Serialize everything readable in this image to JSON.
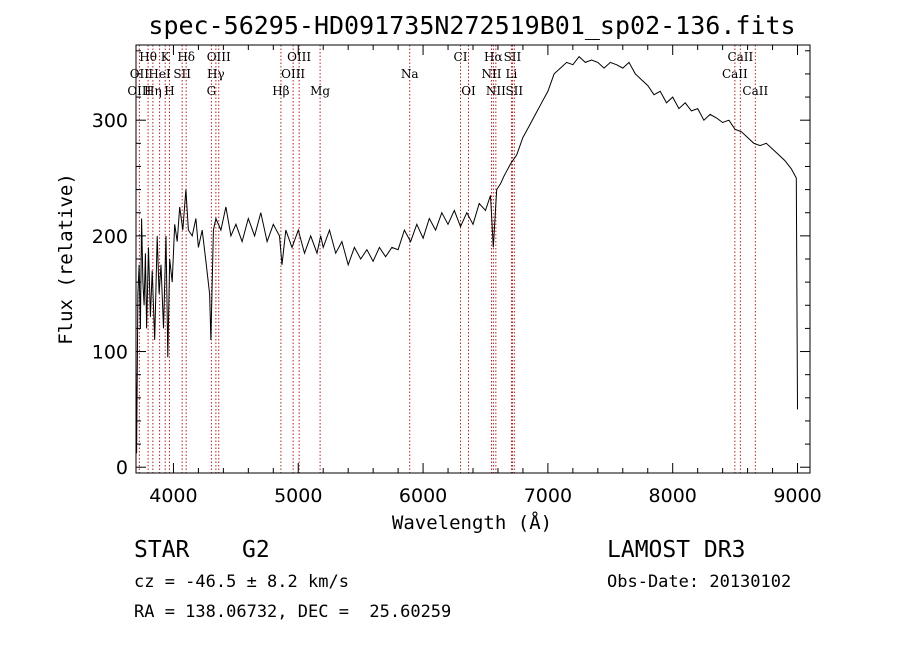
{
  "chart_data": {
    "type": "line",
    "title": "spec-56295-HD091735N272519B01_sp02-136.fits",
    "xlabel": "Wavelength (Å)",
    "ylabel": "Flux (relative)",
    "xlim": [
      3700,
      9100
    ],
    "ylim": [
      -5,
      365
    ],
    "xticks": [
      4000,
      5000,
      6000,
      7000,
      8000,
      9000
    ],
    "yticks": [
      0,
      100,
      200,
      300
    ],
    "series": [
      {
        "name": "Flux",
        "points": [
          [
            3700,
            80
          ],
          [
            3705,
            12
          ],
          [
            3715,
            150
          ],
          [
            3725,
            175
          ],
          [
            3735,
            120
          ],
          [
            3745,
            215
          ],
          [
            3755,
            160
          ],
          [
            3765,
            140
          ],
          [
            3775,
            185
          ],
          [
            3785,
            120
          ],
          [
            3800,
            190
          ],
          [
            3815,
            130
          ],
          [
            3830,
            170
          ],
          [
            3850,
            110
          ],
          [
            3870,
            200
          ],
          [
            3885,
            150
          ],
          [
            3900,
            175
          ],
          [
            3920,
            120
          ],
          [
            3940,
            200
          ],
          [
            3955,
            95
          ],
          [
            3970,
            180
          ],
          [
            3990,
            160
          ],
          [
            4010,
            210
          ],
          [
            4030,
            195
          ],
          [
            4050,
            225
          ],
          [
            4075,
            205
          ],
          [
            4100,
            240
          ],
          [
            4120,
            205
          ],
          [
            4150,
            200
          ],
          [
            4180,
            215
          ],
          [
            4200,
            190
          ],
          [
            4230,
            205
          ],
          [
            4260,
            178
          ],
          [
            4290,
            150
          ],
          [
            4300,
            110
          ],
          [
            4320,
            205
          ],
          [
            4340,
            215
          ],
          [
            4380,
            205
          ],
          [
            4420,
            225
          ],
          [
            4460,
            200
          ],
          [
            4500,
            210
          ],
          [
            4550,
            195
          ],
          [
            4600,
            215
          ],
          [
            4650,
            200
          ],
          [
            4700,
            220
          ],
          [
            4750,
            195
          ],
          [
            4800,
            210
          ],
          [
            4850,
            200
          ],
          [
            4870,
            175
          ],
          [
            4900,
            205
          ],
          [
            4950,
            190
          ],
          [
            5000,
            205
          ],
          [
            5050,
            185
          ],
          [
            5100,
            200
          ],
          [
            5150,
            185
          ],
          [
            5180,
            200
          ],
          [
            5200,
            190
          ],
          [
            5250,
            205
          ],
          [
            5300,
            185
          ],
          [
            5350,
            195
          ],
          [
            5400,
            175
          ],
          [
            5450,
            190
          ],
          [
            5500,
            180
          ],
          [
            5550,
            188
          ],
          [
            5600,
            178
          ],
          [
            5650,
            190
          ],
          [
            5700,
            182
          ],
          [
            5750,
            190
          ],
          [
            5800,
            188
          ],
          [
            5850,
            205
          ],
          [
            5900,
            195
          ],
          [
            5950,
            210
          ],
          [
            6000,
            198
          ],
          [
            6050,
            215
          ],
          [
            6100,
            205
          ],
          [
            6150,
            220
          ],
          [
            6200,
            210
          ],
          [
            6250,
            222
          ],
          [
            6300,
            208
          ],
          [
            6350,
            220
          ],
          [
            6400,
            210
          ],
          [
            6450,
            228
          ],
          [
            6500,
            222
          ],
          [
            6540,
            235
          ],
          [
            6563,
            190
          ],
          [
            6590,
            240
          ],
          [
            6620,
            245
          ],
          [
            6650,
            252
          ],
          [
            6680,
            258
          ],
          [
            6700,
            262
          ],
          [
            6750,
            270
          ],
          [
            6800,
            285
          ],
          [
            6850,
            295
          ],
          [
            6900,
            305
          ],
          [
            6950,
            315
          ],
          [
            7000,
            325
          ],
          [
            7050,
            340
          ],
          [
            7100,
            345
          ],
          [
            7150,
            350
          ],
          [
            7200,
            348
          ],
          [
            7250,
            355
          ],
          [
            7300,
            350
          ],
          [
            7350,
            352
          ],
          [
            7400,
            350
          ],
          [
            7450,
            345
          ],
          [
            7500,
            350
          ],
          [
            7550,
            348
          ],
          [
            7600,
            345
          ],
          [
            7650,
            350
          ],
          [
            7700,
            340
          ],
          [
            7750,
            335
          ],
          [
            7800,
            330
          ],
          [
            7850,
            322
          ],
          [
            7900,
            325
          ],
          [
            7950,
            315
          ],
          [
            8000,
            320
          ],
          [
            8050,
            310
          ],
          [
            8100,
            315
          ],
          [
            8150,
            308
          ],
          [
            8200,
            310
          ],
          [
            8250,
            300
          ],
          [
            8300,
            305
          ],
          [
            8350,
            302
          ],
          [
            8400,
            298
          ],
          [
            8450,
            300
          ],
          [
            8500,
            292
          ],
          [
            8550,
            290
          ],
          [
            8600,
            285
          ],
          [
            8650,
            280
          ],
          [
            8700,
            278
          ],
          [
            8750,
            280
          ],
          [
            8800,
            275
          ],
          [
            8850,
            270
          ],
          [
            8900,
            265
          ],
          [
            8950,
            258
          ],
          [
            8990,
            250
          ],
          [
            9000,
            50
          ]
        ]
      }
    ],
    "line_markers": [
      {
        "label": "Hθ",
        "x": 3797,
        "row": 0
      },
      {
        "label": "K",
        "x": 3934,
        "row": 0
      },
      {
        "label": "Hδ",
        "x": 4102,
        "row": 0
      },
      {
        "label": "OIII",
        "x": 4363,
        "row": 0
      },
      {
        "label": "OIII",
        "x": 5007,
        "row": 0
      },
      {
        "label": "CI",
        "x": 6300,
        "row": 0
      },
      {
        "label": "Hα",
        "x": 6563,
        "row": 0
      },
      {
        "label": "SII",
        "x": 6716,
        "row": 0
      },
      {
        "label": "CaII",
        "x": 8542,
        "row": 0
      },
      {
        "label": "OII",
        "x": 3727,
        "row": 1
      },
      {
        "label": "HeI",
        "x": 3889,
        "row": 1
      },
      {
        "label": "SII",
        "x": 4070,
        "row": 1
      },
      {
        "label": "Hγ",
        "x": 4340,
        "row": 1
      },
      {
        "label": "OIII",
        "x": 4959,
        "row": 1
      },
      {
        "label": "Na",
        "x": 5893,
        "row": 1
      },
      {
        "label": "NII",
        "x": 6548,
        "row": 1
      },
      {
        "label": "Li",
        "x": 6708,
        "row": 1
      },
      {
        "label": "CaII",
        "x": 8498,
        "row": 1
      },
      {
        "label": "OIII",
        "x": 3727,
        "row": 2
      },
      {
        "label": "Hη",
        "x": 3835,
        "row": 2
      },
      {
        "label": "H",
        "x": 3968,
        "row": 2
      },
      {
        "label": "G",
        "x": 4304,
        "row": 2
      },
      {
        "label": "Hβ",
        "x": 4861,
        "row": 2
      },
      {
        "label": "Mg",
        "x": 5175,
        "row": 2
      },
      {
        "label": "OI",
        "x": 6364,
        "row": 2
      },
      {
        "label": "NII",
        "x": 6583,
        "row": 2
      },
      {
        "label": "SII",
        "x": 6731,
        "row": 2
      },
      {
        "label": "CaII",
        "x": 8662,
        "row": 2
      }
    ]
  },
  "footer": {
    "class_label": "STAR",
    "subclass": "G2",
    "survey": "LAMOST DR3",
    "cz": "cz = -46.5 ± 8.2 km/s",
    "obs_date": "Obs-Date: 20130102",
    "coords": "RA = 138.06732, DEC =  25.60259"
  },
  "colors": {
    "line": "#000000",
    "marker": "#b22222"
  }
}
